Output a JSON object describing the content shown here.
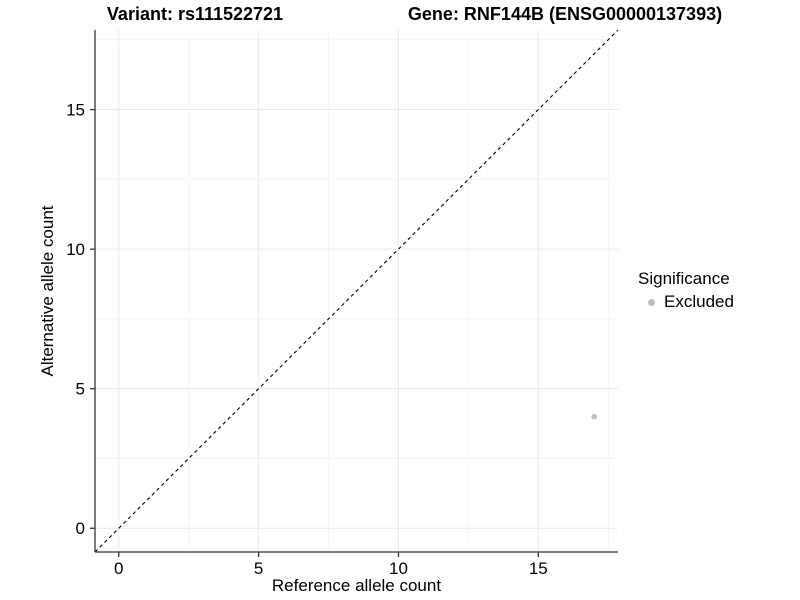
{
  "title": {
    "variant": "Variant: rs111522721",
    "gene": "Gene: RNF144B (ENSG00000137393)"
  },
  "chart_data": {
    "type": "scatter",
    "title": "Variant: rs111522721   Gene: RNF144B (ENSG00000137393)",
    "xlabel": "Reference allele count",
    "ylabel": "Alternative allele count",
    "xlim": [
      -0.85,
      17.85
    ],
    "ylim": [
      -0.85,
      17.85
    ],
    "x_ticks": [
      0,
      5,
      10,
      15
    ],
    "y_ticks": [
      0,
      5,
      10,
      15
    ],
    "x_minor_ticks": [
      2.5,
      7.5,
      12.5,
      17.5
    ],
    "y_minor_ticks": [
      2.5,
      7.5,
      12.5,
      17.5
    ],
    "grid": "major+minor",
    "identity_line": {
      "slope": 1,
      "intercept": 0,
      "style": "dashed",
      "color": "#000000"
    },
    "series": [
      {
        "name": "Excluded",
        "color": "#bdbdbd",
        "points": [
          {
            "x": 17,
            "y": 4
          }
        ]
      }
    ],
    "legend": {
      "title": "Significance",
      "position": "right",
      "entries": [
        {
          "label": "Excluded",
          "color": "#bdbdbd"
        }
      ]
    }
  },
  "colors": {
    "background": "#ffffff",
    "axis_line": "#333333",
    "grid_major": "#e9e9e9",
    "grid_minor": "#f4f4f4",
    "point": "#bdbdbd",
    "text": "#000000"
  }
}
